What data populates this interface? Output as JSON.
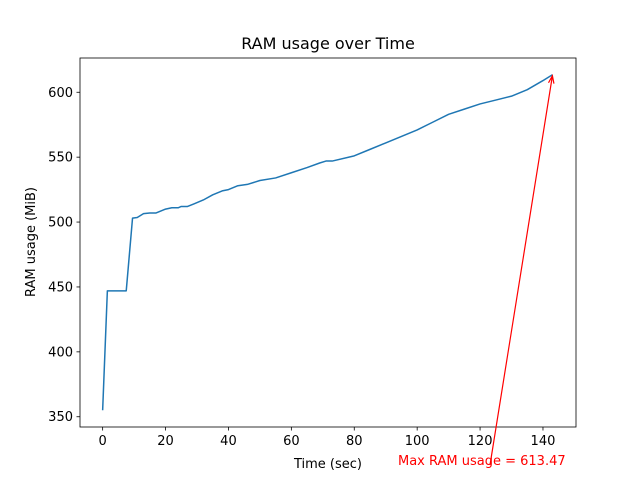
{
  "chart_data": {
    "type": "line",
    "title": "RAM usage over Time",
    "xlabel": "Time (sec)",
    "ylabel": "RAM usage (MiB)",
    "x": [
      0,
      1.5,
      7.5,
      9.5,
      11,
      13,
      15,
      17,
      20,
      22,
      24,
      25,
      27,
      29,
      32,
      35,
      38,
      40,
      43,
      46,
      50,
      55,
      60,
      65,
      69,
      71,
      73,
      80,
      85,
      90,
      95,
      100,
      105,
      110,
      115,
      120,
      125,
      130,
      135,
      140,
      143
    ],
    "series": [
      {
        "name": "RAM usage",
        "color": "#1f77b4",
        "values": [
          355,
          447,
          447,
          503,
          503.5,
          506.5,
          507,
          507,
          510,
          511,
          511,
          512,
          512,
          514,
          517,
          521,
          524,
          525,
          528,
          529,
          532,
          534,
          538,
          542,
          545.5,
          547,
          547,
          551,
          556,
          561,
          566,
          571,
          577,
          583,
          587,
          591,
          594,
          597,
          602,
          609,
          613.47
        ]
      }
    ],
    "xlim": [
      -7.2,
      150.5
    ],
    "ylim": [
      342.1,
      626.4
    ],
    "xticks": [
      0,
      20,
      40,
      60,
      80,
      100,
      120,
      140
    ],
    "yticks": [
      350,
      400,
      450,
      500,
      550,
      600
    ],
    "annotation": {
      "text": "Max RAM usage = 613.47",
      "color": "red"
    }
  }
}
